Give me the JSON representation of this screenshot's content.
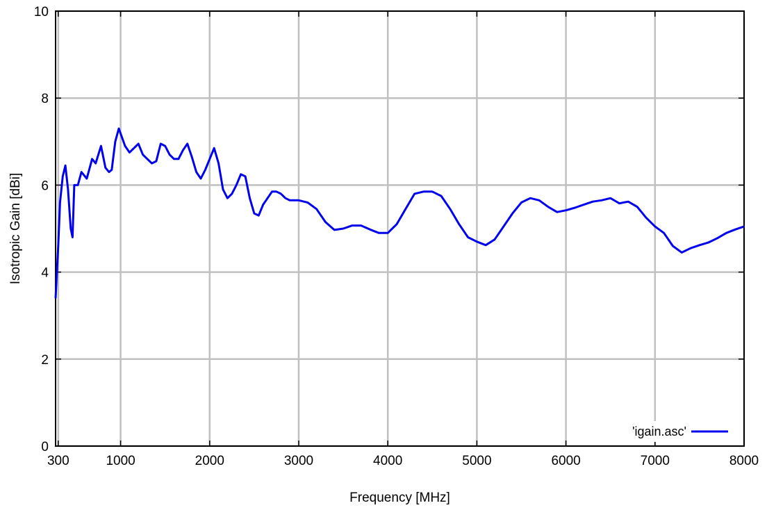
{
  "chart_data": {
    "type": "line",
    "title": "",
    "xlabel": "Frequency [MHz]",
    "ylabel": "Isotropic Gain [dBi]",
    "xlim": [
      270,
      8000
    ],
    "ylim": [
      0,
      10
    ],
    "grid": true,
    "legend_position": "bottom-right",
    "x_ticks": [
      300,
      1000,
      2000,
      3000,
      4000,
      5000,
      6000,
      7000,
      8000
    ],
    "y_ticks": [
      0,
      2,
      4,
      6,
      8,
      10
    ],
    "x_tick_labels": [
      "300",
      "1000",
      "2000",
      "3000",
      "4000",
      "5000",
      "6000",
      "7000",
      "8000"
    ],
    "y_tick_labels": [
      "0",
      "2",
      "4",
      "6",
      "8",
      "10"
    ],
    "series": [
      {
        "name": "'igain.asc'",
        "color": "#0000ee",
        "x": [
          270,
          300,
          320,
          350,
          380,
          410,
          440,
          460,
          480,
          520,
          560,
          620,
          680,
          720,
          780,
          830,
          870,
          900,
          940,
          980,
          1050,
          1100,
          1200,
          1250,
          1300,
          1350,
          1400,
          1450,
          1500,
          1550,
          1600,
          1650,
          1700,
          1750,
          1800,
          1850,
          1900,
          1950,
          2000,
          2050,
          2100,
          2150,
          2200,
          2250,
          2300,
          2350,
          2400,
          2450,
          2500,
          2550,
          2600,
          2650,
          2700,
          2750,
          2800,
          2850,
          2900,
          2950,
          3000,
          3100,
          3200,
          3300,
          3400,
          3500,
          3600,
          3700,
          3800,
          3900,
          4000,
          4100,
          4200,
          4300,
          4400,
          4500,
          4600,
          4700,
          4800,
          4900,
          5000,
          5100,
          5200,
          5300,
          5400,
          5500,
          5600,
          5700,
          5800,
          5900,
          6000,
          6100,
          6200,
          6300,
          6400,
          6500,
          6600,
          6650,
          6700,
          6800,
          6900,
          7000,
          7100,
          7200,
          7300,
          7400,
          7500,
          7600,
          7700,
          7800,
          7900,
          8000
        ],
        "y": [
          3.4,
          4.6,
          5.6,
          6.2,
          6.45,
          5.9,
          5.0,
          4.8,
          6.0,
          6.0,
          6.3,
          6.15,
          6.6,
          6.5,
          6.9,
          6.4,
          6.3,
          6.35,
          7.0,
          7.3,
          6.9,
          6.75,
          6.95,
          6.7,
          6.6,
          6.5,
          6.55,
          6.95,
          6.9,
          6.7,
          6.6,
          6.6,
          6.8,
          6.95,
          6.65,
          6.3,
          6.15,
          6.35,
          6.6,
          6.85,
          6.5,
          5.9,
          5.7,
          5.8,
          6.0,
          6.25,
          6.2,
          5.7,
          5.35,
          5.3,
          5.55,
          5.7,
          5.85,
          5.85,
          5.8,
          5.7,
          5.65,
          5.65,
          5.65,
          5.6,
          5.45,
          5.15,
          4.97,
          5.0,
          5.07,
          5.07,
          4.98,
          4.9,
          4.9,
          5.1,
          5.45,
          5.8,
          5.85,
          5.85,
          5.75,
          5.45,
          5.1,
          4.8,
          4.7,
          4.62,
          4.75,
          5.05,
          5.35,
          5.6,
          5.7,
          5.65,
          5.5,
          5.38,
          5.42,
          5.48,
          5.55,
          5.62,
          5.65,
          5.7,
          5.58,
          5.6,
          5.62,
          5.5,
          5.25,
          5.05,
          4.9,
          4.6,
          4.45,
          4.55,
          4.62,
          4.68,
          4.78,
          4.9,
          4.98,
          5.05
        ]
      }
    ]
  }
}
